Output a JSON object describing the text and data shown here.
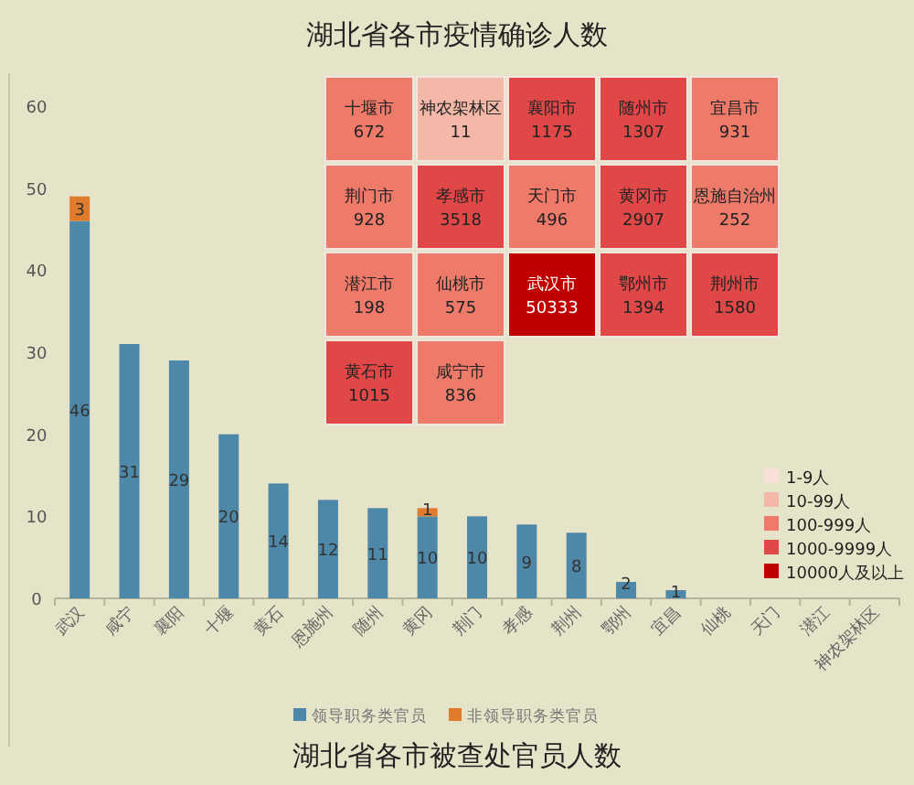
{
  "chart_data": [
    {
      "type": "other",
      "title": "湖北省各市疫情确诊人数",
      "data_labels": true,
      "categories": [
        "十堰市",
        "神农架林区",
        "襄阳市",
        "随州市",
        "宜昌市",
        "荆门市",
        "孝感市",
        "天门市",
        "黄冈市",
        "恩施自治州",
        "潜江市",
        "仙桃市",
        "武汉市",
        "鄂州市",
        "荆州市",
        "黄石市",
        "咸宁市"
      ],
      "series": [
        {
          "name": "1-9人",
          "color": "#f8e0d8",
          "values": [
            null,
            null,
            null,
            null,
            null,
            null,
            null,
            null,
            null,
            null,
            null,
            null,
            null,
            null,
            null,
            null,
            null
          ]
        },
        {
          "name": "10-99人",
          "color": "#f4b8a8",
          "values": [
            null,
            11,
            null,
            null,
            null,
            null,
            null,
            null,
            null,
            null,
            null,
            null,
            null,
            null,
            null,
            null,
            null
          ]
        },
        {
          "name": "100-999人",
          "color": "#ee7a6a",
          "values": [
            672,
            null,
            null,
            null,
            931,
            928,
            null,
            496,
            null,
            252,
            198,
            575,
            null,
            null,
            null,
            null,
            836
          ]
        },
        {
          "name": "1000-9999人",
          "color": "#e04848",
          "values": [
            null,
            null,
            1175,
            1307,
            null,
            null,
            3518,
            null,
            2907,
            null,
            null,
            null,
            null,
            1394,
            1580,
            1015,
            null
          ]
        },
        {
          "name": "10000人及以上",
          "color": "#c00000",
          "values": [
            null,
            null,
            null,
            null,
            null,
            null,
            null,
            null,
            null,
            null,
            null,
            null,
            50333,
            null,
            null,
            null,
            null
          ]
        }
      ],
      "legend": "bottom right"
    },
    {
      "type": "bar",
      "title": "湖北省各市被查处官员人数",
      "stacked": true,
      "categories": [
        "武汉",
        "咸宁",
        "襄阳",
        "十堰",
        "黄石",
        "恩施州",
        "随州",
        "黄冈",
        "荆门",
        "孝感",
        "荆州",
        "鄂州",
        "宜昌",
        "仙桃",
        "天门",
        "潜江",
        "神农架林区"
      ],
      "series": [
        {
          "name": "领导职务类官员",
          "color": "#4e88a8",
          "values": [
            46,
            31,
            29,
            20,
            14,
            12,
            11,
            10,
            10,
            9,
            8,
            2,
            1,
            0,
            0,
            0,
            0
          ],
          "value_labels": [
            "46",
            "31",
            "29",
            "20",
            "14",
            "12",
            "11",
            "10",
            "10",
            "9",
            "8",
            "2",
            "1",
            null,
            null,
            null,
            null
          ]
        },
        {
          "name": "非领导职务类官员",
          "color": "#e07b2b",
          "values": [
            3,
            0,
            0,
            0,
            0,
            0,
            0,
            1,
            0,
            0,
            0,
            0,
            0,
            0,
            0,
            0,
            0
          ],
          "value_labels": [
            "3",
            null,
            null,
            null,
            null,
            null,
            null,
            "1",
            null,
            null,
            null,
            null,
            null,
            null,
            null,
            null,
            null
          ]
        }
      ],
      "ylim": [
        0,
        60
      ],
      "yticks": [
        0,
        10,
        20,
        30,
        40,
        50,
        60
      ],
      "grid": false,
      "legend": "bottom"
    }
  ]
}
